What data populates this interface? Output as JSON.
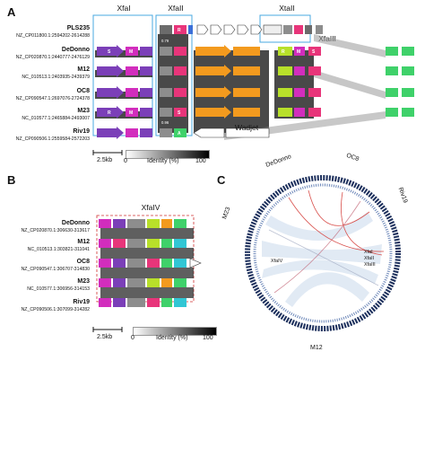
{
  "panel_a": {
    "letter": "A",
    "regions": [
      "XfaI",
      "XfaII",
      "XtaII",
      "XfaIII"
    ],
    "wadjet_label": "Wadjet",
    "strains": [
      {
        "name": "PLS235",
        "locus": "NZ_CP011800.1:2594202-2614288"
      },
      {
        "name": "DeDonno",
        "locus": "NZ_CP020870.1:2440777-2476129"
      },
      {
        "name": "M12",
        "locus": "NC_010513.1:2403935-2439379"
      },
      {
        "name": "OC8",
        "locus": "NZ_CP090547.1:2697076-2724378"
      },
      {
        "name": "M23",
        "locus": "NC_010577.1:2465884-2493007"
      },
      {
        "name": "Riv19",
        "locus": "NZ_CP090506.1:2559584-2572203"
      }
    ],
    "gene_letters": [
      "R",
      "S",
      "M",
      "R",
      "M",
      "S",
      "R",
      "S",
      "M",
      "A"
    ],
    "identity_values": [
      "0.79",
      "0.97",
      "0.95",
      "0.97",
      "0.95",
      "0.97",
      "0.98",
      "0.97",
      "0.96",
      "0.97"
    ],
    "scale": "2.5kb",
    "legend": {
      "title": "Identity (%)",
      "min": "0",
      "max": "100"
    }
  },
  "panel_b": {
    "letter": "B",
    "region": "XfaIV",
    "strains": [
      {
        "name": "DeDonno",
        "locus": "NZ_CP020870.1:306630-313617"
      },
      {
        "name": "M12",
        "locus": "NC_010513.1:303821-311041"
      },
      {
        "name": "OC8",
        "locus": "NZ_CP090547.1:306707-314830"
      },
      {
        "name": "M23",
        "locus": "NC_010577.1:306956-314153"
      },
      {
        "name": "Riv19",
        "locus": "NZ_CP090506.1:307099-314282"
      }
    ],
    "scale": "2.5kb",
    "legend": {
      "title": "Identity (%)",
      "min": "0",
      "max": "100"
    }
  },
  "panel_c": {
    "letter": "C",
    "genome_labels": [
      "DeDonno",
      "OC8",
      "Riv19",
      "M12",
      "M23"
    ],
    "island_labels": [
      "XfaI",
      "XfaII",
      "XfaIII",
      "XfaIV"
    ]
  },
  "colors": {
    "purple": "#7b3fb8",
    "magenta": "#d22dbd",
    "pink": "#e8357a",
    "green": "#3fd16a",
    "orange": "#f39a1e",
    "lime": "#b8e02a",
    "cyan": "#31c6d4",
    "gray": "#8d8d8d",
    "blue": "#3a6fd8"
  }
}
